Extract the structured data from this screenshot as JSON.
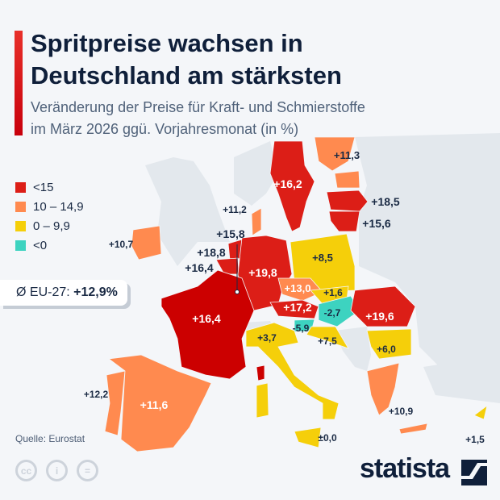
{
  "header": {
    "title_line1": "Spritpreise wachsen in",
    "title_line2": "Deutschland am stärksten",
    "subtitle_line1": "Veränderung der Preise für Kraft- und Schmierstoffe",
    "subtitle_line2": "im März 2026 ggü. Vorjahresmonat (in %)"
  },
  "legend": [
    {
      "label": "<15",
      "color": "#dc1e17"
    },
    {
      "label": "10 – 14,9",
      "color": "#ff8a4f"
    },
    {
      "label": "0 – 9,9",
      "color": "#f5cf0a"
    },
    {
      "label": "<0",
      "color": "#3dd3c0"
    }
  ],
  "average": {
    "label": "Ø EU-27:",
    "value": "+12,9%"
  },
  "map_values": {
    "sweden": "+16,2",
    "finland": "+11,3",
    "estonia": "+18,5",
    "lithuania": "+15,6",
    "denmark": "+11,2",
    "ireland": "+10,7",
    "luxembourg": "+15,8",
    "netherlands": "+18,8",
    "belgium": "+16,4",
    "germany": "+19,8",
    "poland": "+8,5",
    "czechia": "+13,0",
    "slovakia": "+1,6",
    "austria": "+17,2",
    "hungary": "-2,7",
    "slovenia": "-5,9",
    "croatia": "+7,5",
    "romania": "+19,6",
    "bulgaria": "+6,0",
    "greece": "+10,9",
    "cyprus": "+1,5",
    "malta": "±0,0",
    "france": "+16,4",
    "portugal": "+12,2",
    "spain": "+11,6",
    "italy": "+3,7"
  },
  "colors": {
    "red": "#dc1e17",
    "dark_red": "#cc0000",
    "orange": "#ff8a4f",
    "yellow": "#f5cf0a",
    "teal": "#3dd3c0",
    "non_eu": "#e3e8ed"
  },
  "footer": {
    "source": "Quelle: Eurostat",
    "brand": "statista"
  }
}
